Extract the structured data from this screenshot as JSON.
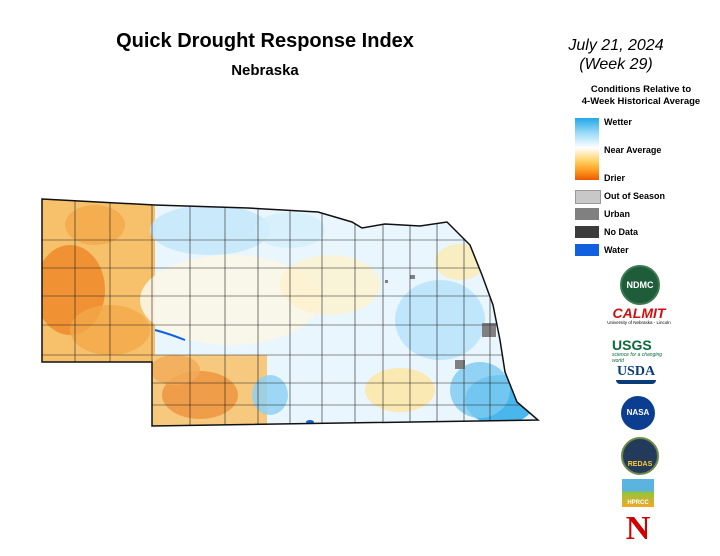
{
  "title": "Quick Drought Response Index",
  "region": "Nebraska",
  "date_line1": "July 21, 2024",
  "date_line2": "(Week 29)",
  "legend": {
    "heading_line1": "Conditions Relative to",
    "heading_line2": "4-Week Historical Average",
    "ramp_labels": {
      "wetter": "Wetter",
      "near": "Near Average",
      "drier": "Drier"
    },
    "categories": [
      {
        "label": "Out of Season",
        "color": "#c8c8c8"
      },
      {
        "label": "Urban",
        "color": "#808080"
      },
      {
        "label": "No Data",
        "color": "#3c3c3c"
      },
      {
        "label": "Water",
        "color": "#1060e0"
      }
    ]
  },
  "colors": {
    "wet": "#22a8e8",
    "near": "#ffffff",
    "dry": "#e85a00",
    "border": "#111111"
  },
  "logos": {
    "ndmc": "NDMC",
    "calmit": "CALMIT",
    "calmit_sub": "University of Nebraska - Lincoln",
    "usgs": "USGS",
    "usgs_tag": "science for a changing world",
    "usda": "USDA",
    "nasa": "NASA",
    "redas": "REDAS",
    "hprcc": "HPRCC",
    "unl": "N"
  }
}
